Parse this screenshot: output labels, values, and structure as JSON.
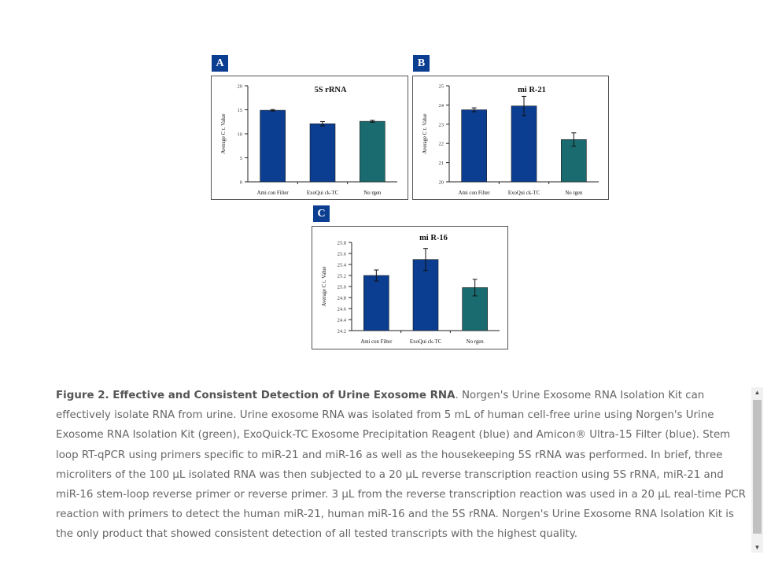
{
  "panels": [
    {
      "letter": "A"
    },
    {
      "letter": "B"
    },
    {
      "letter": "C"
    }
  ],
  "chart_data": [
    {
      "type": "bar",
      "title": "5S rRNA",
      "ylabel": "Average C t. Value",
      "categories": [
        "Ami con Filter",
        "ExoQui ck-TC",
        "No rgen"
      ],
      "values": [
        14.9,
        12.1,
        12.6
      ],
      "errors": [
        0.15,
        0.45,
        0.2
      ],
      "ylim": [
        0,
        20
      ],
      "yticks": [
        "0",
        "5",
        "10",
        "15",
        "20"
      ],
      "colors": [
        "#0b3d91",
        "#0b3d91",
        "#1a6b6f"
      ]
    },
    {
      "type": "bar",
      "title": "mi R-21",
      "ylabel": "Average C t. Value",
      "categories": [
        "Ami con Filter",
        "ExoQui ck-TC",
        "No rgen"
      ],
      "values": [
        23.75,
        23.95,
        22.2
      ],
      "errors": [
        0.1,
        0.5,
        0.35
      ],
      "ylim": [
        20,
        25
      ],
      "yticks": [
        "20",
        "21",
        "22",
        "23",
        "24",
        "25"
      ],
      "colors": [
        "#0b3d91",
        "#0b3d91",
        "#1a6b6f"
      ]
    },
    {
      "type": "bar",
      "title": "mi R-16",
      "ylabel": "Average C t. Value",
      "categories": [
        "Ami con Filter",
        "ExoQui ck-TC",
        "No rgen"
      ],
      "values": [
        25.2,
        25.49,
        24.98
      ],
      "errors": [
        0.1,
        0.2,
        0.15
      ],
      "ylim": [
        24.2,
        25.8
      ],
      "yticks": [
        "24.2",
        "24.4",
        "24.6",
        "24.8",
        "25.0",
        "25.2",
        "25.4",
        "25.6",
        "25.8"
      ],
      "colors": [
        "#0b3d91",
        "#0b3d91",
        "#1a6b6f"
      ]
    }
  ],
  "caption": {
    "title": "Figure 2. Effective and Consistent Detection of Urine Exosome RNA",
    "body": ". Norgen's Urine Exosome RNA Isolation Kit can effectively isolate RNA from urine. Urine exosome RNA was isolated from 5 mL of human cell-free urine using Norgen's Urine Exosome RNA Isolation Kit (green), ExoQuick-TC Exosome Precipitation Reagent (blue) and Amicon® Ultra-15 Filter (blue). Stem loop RT-qPCR using primers specific to miR-21 and miR-16 as well as the housekeeping 5S rRNA was performed. In brief, three microliters of the 100 µL isolated RNA was then subjected to a 20 µL reverse transcription reaction using 5S rRNA, miR-21 and miR-16 stem-loop reverse primer or reverse primer. 3 µL from the reverse transcription reaction was used in a 20 µL real-time PCR reaction with primers to detect the human miR-21, human miR-16 and the 5S rRNA. Norgen's Urine Exosome RNA Isolation Kit is the only product that showed consistent detection of all tested transcripts with the highest quality."
  },
  "scrollbar": {
    "up_icon": "up-arrow-icon",
    "down_icon": "down-arrow-icon"
  }
}
